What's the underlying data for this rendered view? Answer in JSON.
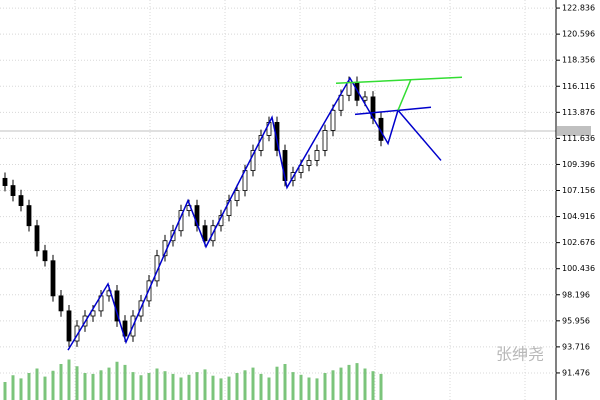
{
  "chart_data": {
    "type": "candlestick",
    "ylim": [
      89.15,
      123.53
    ],
    "yticks": [
      122.836,
      120.596,
      118.356,
      116.116,
      113.876,
      111.636,
      109.396,
      107.156,
      104.916,
      102.676,
      100.436,
      98.196,
      95.956,
      93.716,
      91.476
    ],
    "grid": true,
    "up_color": "#ffffff",
    "down_color": "#000000",
    "wick_color": "#000000",
    "open": [
      108.2,
      107.58,
      106.72,
      105.86,
      104.13,
      101.98,
      101.12,
      98.1,
      96.81,
      94.22,
      95.51,
      96.37,
      96.81,
      98.1,
      98.53,
      95.94,
      94.65,
      96.37,
      97.67,
      99.39,
      101.55,
      102.84,
      103.7,
      105.43,
      105.86,
      104.13,
      102.84,
      104.13,
      105.0,
      106.29,
      107.15,
      108.87,
      110.6,
      111.89,
      113.01,
      110.6,
      108.01,
      108.7,
      109.31,
      109.74,
      110.6,
      112.32,
      114.05,
      115.34,
      116.46,
      114.91,
      115.2,
      113.36
    ],
    "high": [
      108.7,
      108.08,
      107.22,
      106.36,
      104.63,
      102.48,
      101.62,
      98.6,
      97.31,
      96.01,
      96.87,
      97.31,
      98.6,
      99.03,
      99.03,
      96.44,
      96.87,
      98.17,
      99.89,
      102.05,
      103.34,
      104.2,
      105.93,
      106.36,
      106.36,
      104.63,
      104.63,
      105.5,
      106.79,
      107.65,
      109.37,
      111.1,
      112.39,
      113.51,
      113.51,
      111.1,
      109.2,
      109.81,
      110.24,
      111.1,
      112.82,
      114.55,
      115.84,
      116.96,
      116.96,
      115.7,
      115.7,
      113.86
    ],
    "low": [
      107.08,
      106.22,
      105.36,
      103.63,
      101.48,
      100.62,
      97.6,
      96.31,
      93.72,
      93.72,
      95.01,
      95.87,
      96.31,
      97.6,
      95.44,
      94.15,
      94.15,
      95.87,
      97.17,
      98.89,
      101.05,
      102.34,
      103.2,
      104.93,
      103.63,
      102.34,
      102.34,
      103.63,
      104.5,
      105.79,
      106.65,
      108.37,
      110.1,
      111.39,
      110.1,
      107.51,
      107.51,
      108.2,
      108.81,
      109.24,
      110.1,
      111.82,
      113.55,
      114.84,
      114.41,
      114.41,
      112.86,
      110.96
    ],
    "close": [
      107.58,
      106.72,
      105.86,
      104.13,
      101.98,
      101.12,
      98.1,
      96.81,
      94.22,
      95.51,
      96.37,
      96.81,
      98.1,
      98.53,
      95.94,
      94.65,
      96.37,
      97.67,
      99.39,
      101.55,
      102.84,
      103.7,
      105.43,
      105.86,
      104.13,
      102.84,
      104.13,
      105.0,
      106.29,
      107.15,
      108.87,
      110.6,
      111.89,
      113.01,
      110.6,
      108.01,
      108.7,
      109.31,
      109.74,
      110.6,
      112.32,
      114.05,
      115.34,
      116.46,
      114.91,
      115.2,
      113.36,
      111.46
    ],
    "volume_color": "#7bc47b",
    "volume_lim": [
      0,
      100
    ],
    "volume": [
      40,
      55,
      48,
      60,
      70,
      52,
      65,
      80,
      90,
      75,
      60,
      58,
      66,
      72,
      85,
      78,
      62,
      55,
      60,
      70,
      64,
      58,
      50,
      56,
      62,
      68,
      54,
      48,
      52,
      60,
      66,
      72,
      58,
      50,
      74,
      80,
      62,
      56,
      50,
      48,
      60,
      66,
      72,
      78,
      82,
      70,
      64,
      58
    ],
    "lines": [
      {
        "color": "#0000cc",
        "x": [
          7.875,
          12.875,
          15.125,
          22.875,
          25.125,
          33.375,
          35.25,
          43.125,
          47.875,
          49.125,
          54.5
        ],
        "y": [
          93.44,
          99.13,
          94.13,
          106.29,
          102.32,
          113.44,
          107.41,
          116.81,
          111.2,
          114.05,
          109.74
        ]
      },
      {
        "color": "#0000cc",
        "x": [
          43.75,
          53.25
        ],
        "y": [
          113.7,
          114.31
        ]
      },
      {
        "color": "#33dd33",
        "x": [
          41.375,
          57.125
        ],
        "y": [
          116.37,
          116.89
        ]
      },
      {
        "color": "#33dd33",
        "x": [
          49.125,
          50.75
        ],
        "y": [
          114.05,
          116.72
        ]
      }
    ],
    "watermark": "张绅尧"
  }
}
